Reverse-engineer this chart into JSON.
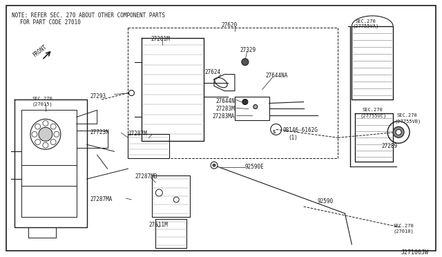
{
  "bg_color": "#ffffff",
  "line_color": "#1a1a1a",
  "text_color": "#1a1a1a",
  "title_note": "NOTE: REFER SEC. 270 ABOUT OTHER COMPONENT PARTS",
  "title_note2": "FOR PART CODE 27010",
  "diagram_id": "J27100JW",
  "fig_w": 6.4,
  "fig_h": 3.72,
  "dpi": 100
}
